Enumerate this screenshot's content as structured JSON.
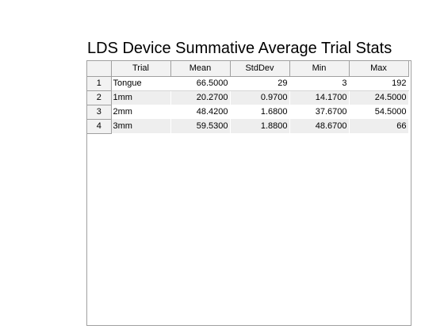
{
  "title": "LDS Device Summative Average Trial Stats",
  "table": {
    "columns": [
      "Trial",
      "Mean",
      "StdDev",
      "Min",
      "Max"
    ],
    "rows": [
      {
        "num": "1",
        "trial": "Tongue",
        "mean": "66.5000",
        "stddev": "29",
        "min": "3",
        "max": "192"
      },
      {
        "num": "2",
        "trial": "1mm",
        "mean": "20.2700",
        "stddev": "0.9700",
        "min": "14.1700",
        "max": "24.5000"
      },
      {
        "num": "3",
        "trial": "2mm",
        "mean": "48.4200",
        "stddev": "1.6800",
        "min": "37.6700",
        "max": "54.5000"
      },
      {
        "num": "4",
        "trial": "3mm",
        "mean": "59.5300",
        "stddev": "1.8800",
        "min": "48.6700",
        "max": "66"
      }
    ]
  }
}
